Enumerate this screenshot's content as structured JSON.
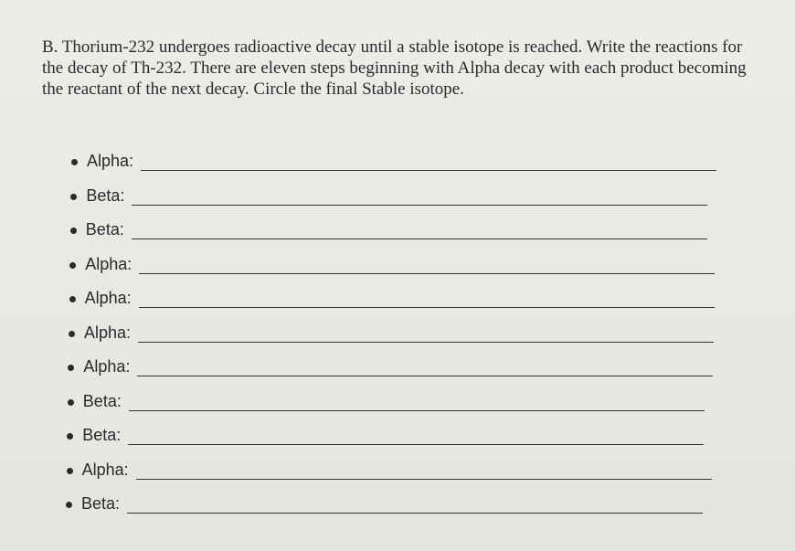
{
  "question": {
    "text": "B. Thorium-232 undergoes radioactive decay until a stable isotope is reached. Write the reactions for the decay of Th-232. There are eleven steps beginning with Alpha decay with each product becoming the reactant of the next decay. Circle the final Stable isotope."
  },
  "steps": [
    "Alpha:",
    "Beta:",
    "Beta:",
    "Alpha:",
    "Alpha:",
    "Alpha:",
    "Alpha:",
    "Beta:",
    "Beta:",
    "Alpha:",
    "Beta:"
  ]
}
